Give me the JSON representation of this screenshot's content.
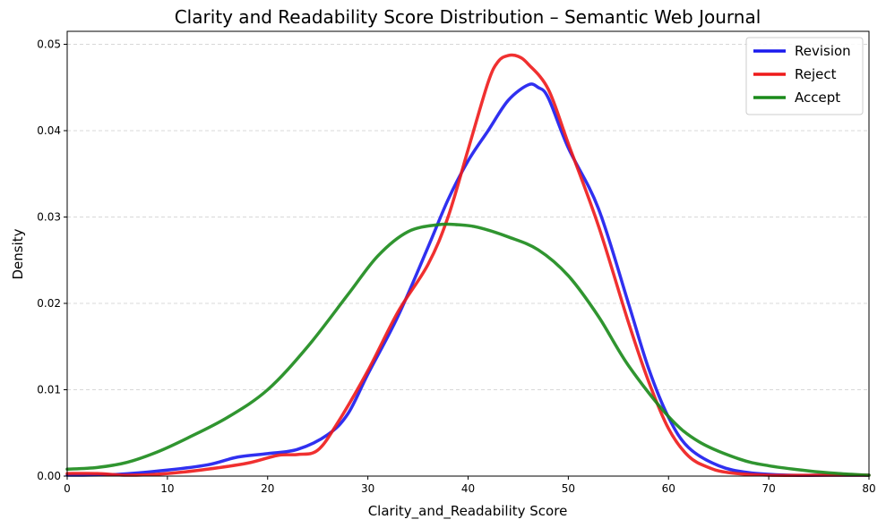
{
  "chart_data": {
    "type": "line",
    "title": "Clarity and Readability Score Distribution – Semantic Web Journal",
    "xlabel": "Clarity_and_Readability Score",
    "ylabel": "Density",
    "xlim": [
      0,
      80
    ],
    "ylim": [
      0,
      0.0515
    ],
    "xticks": [
      0,
      10,
      20,
      30,
      40,
      50,
      60,
      70,
      80
    ],
    "xtick_labels": [
      "0",
      "10",
      "20",
      "30",
      "40",
      "50",
      "60",
      "70",
      "80"
    ],
    "yticks": [
      0,
      0.01,
      0.02,
      0.03,
      0.04,
      0.05
    ],
    "ytick_labels": [
      "0.00",
      "0.01",
      "0.02",
      "0.03",
      "0.04",
      "0.05"
    ],
    "grid": "horizontal dashed",
    "legend_position": "top-right",
    "series": [
      {
        "name": "Revision",
        "color": "#1a1aee",
        "x": [
          0,
          5,
          10,
          14,
          17,
          20,
          23,
          26,
          28,
          30,
          33,
          36,
          38,
          40,
          42,
          44,
          46,
          47,
          48,
          50,
          53,
          56,
          58,
          60,
          62,
          65,
          68,
          72,
          76,
          80
        ],
        "y": [
          0.0001,
          0.0002,
          0.0007,
          0.0013,
          0.0022,
          0.0026,
          0.0031,
          0.0048,
          0.0072,
          0.0118,
          0.0185,
          0.0265,
          0.032,
          0.0365,
          0.04,
          0.0435,
          0.0453,
          0.045,
          0.0438,
          0.038,
          0.031,
          0.02,
          0.0125,
          0.0068,
          0.0033,
          0.0012,
          0.0004,
          0.0001,
          0.0001,
          0.0001
        ]
      },
      {
        "name": "Reject",
        "color": "#ee1a1a",
        "x": [
          0,
          3,
          6,
          10,
          14,
          18,
          21,
          23,
          25,
          27,
          30,
          33,
          36,
          38,
          40,
          42,
          43,
          44,
          45,
          46,
          48,
          50,
          53,
          56,
          58,
          60,
          62,
          64,
          66,
          70,
          75,
          80
        ],
        "y": [
          0.0003,
          0.0003,
          0.0001,
          0.0003,
          0.0008,
          0.0015,
          0.0024,
          0.0025,
          0.003,
          0.0062,
          0.0122,
          0.019,
          0.0245,
          0.03,
          0.0378,
          0.0456,
          0.048,
          0.0487,
          0.0486,
          0.0477,
          0.0448,
          0.0385,
          0.029,
          0.0178,
          0.011,
          0.0055,
          0.0023,
          0.001,
          0.0004,
          0.0001,
          0.0001,
          0.0001
        ]
      },
      {
        "name": "Accept",
        "color": "#1a8a1a",
        "x": [
          0,
          3,
          6,
          9,
          12,
          16,
          20,
          24,
          28,
          31,
          34,
          37,
          39,
          41,
          44,
          47,
          50,
          53,
          56,
          60,
          63,
          67,
          70,
          74,
          77,
          80
        ],
        "y": [
          0.0008,
          0.001,
          0.0016,
          0.0028,
          0.0044,
          0.0068,
          0.01,
          0.015,
          0.021,
          0.0255,
          0.0283,
          0.0291,
          0.0291,
          0.0288,
          0.0277,
          0.0262,
          0.0232,
          0.0185,
          0.0128,
          0.0069,
          0.004,
          0.002,
          0.0012,
          0.0006,
          0.0003,
          0.0001
        ]
      }
    ]
  }
}
